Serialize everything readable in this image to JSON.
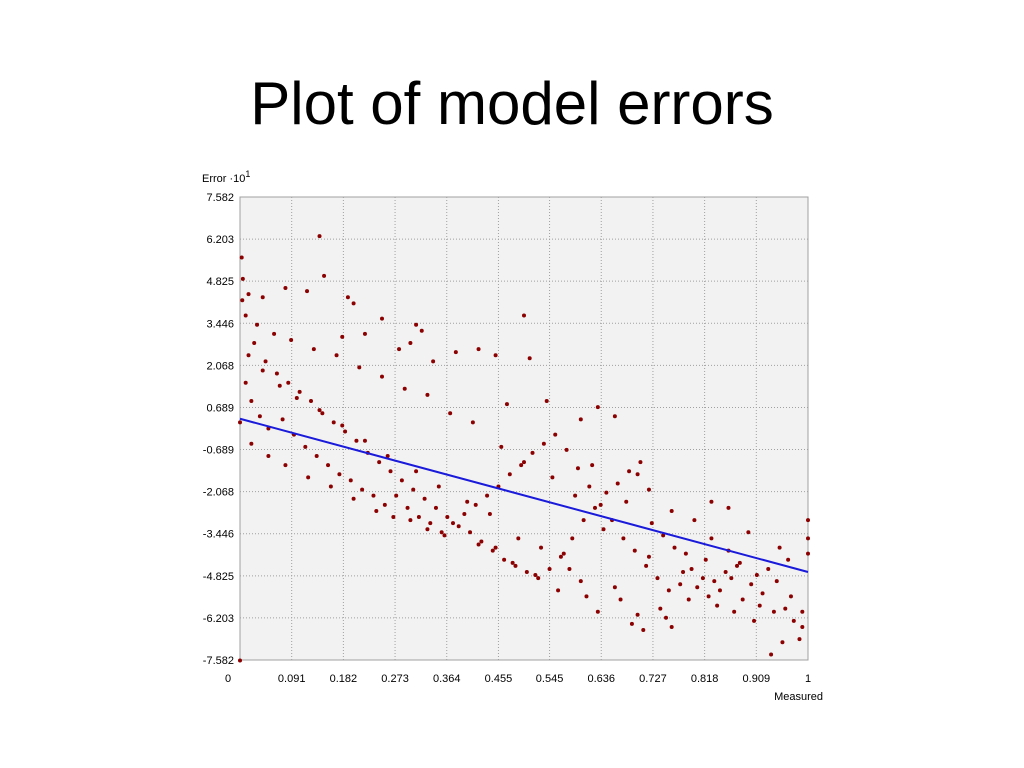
{
  "slide": {
    "title": "Plot of model errors"
  },
  "chart_data": {
    "type": "scatter",
    "title": "",
    "ylabel": "Error ·10",
    "ylabel_exponent": "1",
    "xlabel": "Measured",
    "xlim": [
      0,
      1
    ],
    "ylim": [
      -7.582,
      7.582
    ],
    "x_ticks": [
      "0",
      "0.091",
      "0.182",
      "0.273",
      "0.364",
      "0.455",
      "0.545",
      "0.636",
      "0.727",
      "0.818",
      "0.909",
      "1"
    ],
    "y_ticks": [
      "7.582",
      "6.203",
      "4.825",
      "3.446",
      "2.068",
      "0.689",
      "-0.689",
      "-2.068",
      "-3.446",
      "-4.825",
      "-6.203",
      "-7.582"
    ],
    "grid": true,
    "colors": {
      "points": "#8b0000",
      "trend": "#1a1adb",
      "plot_bg": "#f2f2f2",
      "grid": "#a0a0a0"
    },
    "series": [
      {
        "kind": "points",
        "points": [
          [
            0.003,
            5.6
          ],
          [
            0.005,
            4.9
          ],
          [
            0.004,
            4.2
          ],
          [
            0.015,
            4.4
          ],
          [
            0.04,
            4.3
          ],
          [
            0.08,
            4.6
          ],
          [
            0.118,
            4.5
          ],
          [
            0.14,
            6.3
          ],
          [
            0.148,
            5.0
          ],
          [
            0.19,
            4.3
          ],
          [
            0.2,
            4.1
          ],
          [
            0.25,
            3.6
          ],
          [
            0.31,
            3.4
          ],
          [
            0.32,
            3.2
          ],
          [
            0.5,
            3.7
          ],
          [
            0.22,
            3.1
          ],
          [
            0.18,
            3.0
          ],
          [
            0.3,
            2.8
          ],
          [
            0.38,
            2.5
          ],
          [
            0.42,
            2.6
          ],
          [
            0.45,
            2.4
          ],
          [
            0.51,
            2.3
          ],
          [
            0.28,
            2.6
          ],
          [
            0.34,
            2.2
          ],
          [
            0.63,
            0.7
          ],
          [
            0.66,
            0.4
          ],
          [
            0.6,
            0.3
          ],
          [
            0.54,
            0.9
          ],
          [
            0.47,
            0.8
          ],
          [
            0.7,
            -1.5
          ],
          [
            0.72,
            -2.0
          ],
          [
            0.62,
            -1.2
          ],
          [
            0.68,
            -2.4
          ],
          [
            0.76,
            -2.7
          ],
          [
            0.8,
            -3.0
          ],
          [
            0.83,
            -3.6
          ],
          [
            0.86,
            -4.0
          ],
          [
            0.88,
            -4.4
          ],
          [
            0.9,
            -5.1
          ],
          [
            0.93,
            -4.6
          ],
          [
            0.95,
            -3.9
          ],
          [
            0.97,
            -5.5
          ],
          [
            0.99,
            -6.0
          ],
          [
            1.0,
            -3.0
          ],
          [
            1.0,
            -3.6
          ],
          [
            1.0,
            -4.1
          ],
          [
            0.985,
            -6.9
          ],
          [
            0.935,
            -7.4
          ],
          [
            0.955,
            -7.0
          ],
          [
            0.905,
            -6.3
          ],
          [
            0.87,
            -6.0
          ],
          [
            0.84,
            -5.8
          ],
          [
            0.79,
            -5.6
          ],
          [
            0.76,
            -6.5
          ],
          [
            0.74,
            -5.9
          ],
          [
            0.7,
            -6.1
          ],
          [
            0.69,
            -6.4
          ],
          [
            0.66,
            -5.2
          ],
          [
            0.63,
            -6.0
          ],
          [
            0.6,
            -5.0
          ],
          [
            0.58,
            -4.6
          ],
          [
            0.56,
            -5.3
          ],
          [
            0.52,
            -4.8
          ],
          [
            0.48,
            -4.4
          ],
          [
            0.45,
            -3.9
          ],
          [
            0.42,
            -3.8
          ],
          [
            0.36,
            -3.5
          ],
          [
            0.33,
            -3.3
          ],
          [
            0.3,
            -3.0
          ],
          [
            0.27,
            -2.9
          ],
          [
            0.24,
            -2.7
          ],
          [
            0.2,
            -2.3
          ],
          [
            0.16,
            -1.9
          ],
          [
            0.12,
            -1.6
          ],
          [
            0.08,
            -1.2
          ],
          [
            0.05,
            -0.9
          ],
          [
            0.02,
            -0.5
          ],
          [
            0.0,
            -7.6
          ],
          [
            0.0,
            0.2
          ],
          [
            0.83,
            -2.4
          ],
          [
            0.86,
            -2.6
          ],
          [
            0.82,
            -4.3
          ],
          [
            0.78,
            -4.7
          ],
          [
            0.72,
            -4.2
          ],
          [
            0.64,
            -3.3
          ],
          [
            0.59,
            -2.2
          ],
          [
            0.55,
            -1.6
          ],
          [
            0.5,
            -1.1
          ],
          [
            0.46,
            -0.6
          ],
          [
            0.41,
            0.2
          ],
          [
            0.37,
            0.5
          ],
          [
            0.33,
            1.1
          ],
          [
            0.29,
            1.3
          ],
          [
            0.25,
            1.7
          ],
          [
            0.21,
            2.0
          ],
          [
            0.17,
            2.4
          ],
          [
            0.13,
            2.6
          ],
          [
            0.09,
            2.9
          ],
          [
            0.06,
            3.1
          ],
          [
            0.03,
            3.4
          ],
          [
            0.01,
            3.7
          ],
          [
            0.025,
            2.8
          ],
          [
            0.045,
            2.2
          ],
          [
            0.065,
            1.8
          ],
          [
            0.085,
            1.5
          ],
          [
            0.105,
            1.2
          ],
          [
            0.125,
            0.9
          ],
          [
            0.145,
            0.5
          ],
          [
            0.165,
            0.2
          ],
          [
            0.185,
            -0.1
          ],
          [
            0.205,
            -0.4
          ],
          [
            0.225,
            -0.8
          ],
          [
            0.245,
            -1.1
          ],
          [
            0.265,
            -1.4
          ],
          [
            0.285,
            -1.7
          ],
          [
            0.305,
            -2.0
          ],
          [
            0.325,
            -2.3
          ],
          [
            0.345,
            -2.6
          ],
          [
            0.365,
            -2.9
          ],
          [
            0.385,
            -3.2
          ],
          [
            0.405,
            -3.4
          ],
          [
            0.425,
            -3.7
          ],
          [
            0.445,
            -4.0
          ],
          [
            0.465,
            -4.3
          ],
          [
            0.485,
            -4.5
          ],
          [
            0.505,
            -4.7
          ],
          [
            0.525,
            -4.9
          ],
          [
            0.545,
            -4.6
          ],
          [
            0.565,
            -4.2
          ],
          [
            0.585,
            -3.6
          ],
          [
            0.605,
            -3.0
          ],
          [
            0.625,
            -2.6
          ],
          [
            0.645,
            -2.1
          ],
          [
            0.665,
            -1.8
          ],
          [
            0.685,
            -1.4
          ],
          [
            0.705,
            -1.1
          ],
          [
            0.725,
            -3.1
          ],
          [
            0.745,
            -3.5
          ],
          [
            0.765,
            -3.9
          ],
          [
            0.785,
            -4.1
          ],
          [
            0.805,
            -5.2
          ],
          [
            0.825,
            -5.5
          ],
          [
            0.845,
            -5.3
          ],
          [
            0.865,
            -4.9
          ],
          [
            0.885,
            -5.6
          ],
          [
            0.895,
            -3.4
          ],
          [
            0.915,
            -5.8
          ],
          [
            0.945,
            -5.0
          ],
          [
            0.965,
            -4.3
          ],
          [
            0.975,
            -6.3
          ],
          [
            0.99,
            -6.5
          ],
          [
            0.75,
            -6.2
          ],
          [
            0.71,
            -6.6
          ],
          [
            0.67,
            -5.6
          ],
          [
            0.61,
            -5.5
          ],
          [
            0.57,
            -4.1
          ],
          [
            0.53,
            -3.9
          ],
          [
            0.49,
            -3.6
          ],
          [
            0.44,
            -2.8
          ],
          [
            0.4,
            -2.4
          ],
          [
            0.35,
            -1.9
          ],
          [
            0.31,
            -1.4
          ],
          [
            0.26,
            -0.9
          ],
          [
            0.22,
            -0.4
          ],
          [
            0.18,
            0.1
          ],
          [
            0.14,
            0.6
          ],
          [
            0.1,
            1.0
          ],
          [
            0.07,
            1.4
          ],
          [
            0.04,
            1.9
          ],
          [
            0.015,
            2.4
          ],
          [
            0.01,
            1.5
          ],
          [
            0.02,
            0.9
          ],
          [
            0.035,
            0.4
          ],
          [
            0.05,
            0.0
          ],
          [
            0.075,
            0.3
          ],
          [
            0.095,
            -0.2
          ],
          [
            0.115,
            -0.6
          ],
          [
            0.135,
            -0.9
          ],
          [
            0.155,
            -1.2
          ],
          [
            0.175,
            -1.5
          ],
          [
            0.195,
            -1.7
          ],
          [
            0.215,
            -2.0
          ],
          [
            0.235,
            -2.2
          ],
          [
            0.255,
            -2.5
          ],
          [
            0.275,
            -2.2
          ],
          [
            0.295,
            -2.6
          ],
          [
            0.315,
            -2.9
          ],
          [
            0.335,
            -3.1
          ],
          [
            0.355,
            -3.4
          ],
          [
            0.375,
            -3.1
          ],
          [
            0.395,
            -2.8
          ],
          [
            0.415,
            -2.5
          ],
          [
            0.435,
            -2.2
          ],
          [
            0.455,
            -1.9
          ],
          [
            0.475,
            -1.5
          ],
          [
            0.495,
            -1.2
          ],
          [
            0.515,
            -0.8
          ],
          [
            0.535,
            -0.5
          ],
          [
            0.555,
            -0.2
          ],
          [
            0.575,
            -0.7
          ],
          [
            0.595,
            -1.3
          ],
          [
            0.615,
            -1.9
          ],
          [
            0.635,
            -2.5
          ],
          [
            0.655,
            -3.0
          ],
          [
            0.675,
            -3.6
          ],
          [
            0.695,
            -4.0
          ],
          [
            0.715,
            -4.5
          ],
          [
            0.735,
            -4.9
          ],
          [
            0.755,
            -5.3
          ],
          [
            0.775,
            -5.1
          ],
          [
            0.795,
            -4.6
          ],
          [
            0.815,
            -4.9
          ],
          [
            0.835,
            -5.0
          ],
          [
            0.855,
            -4.7
          ],
          [
            0.875,
            -4.5
          ],
          [
            0.91,
            -4.8
          ],
          [
            0.92,
            -5.4
          ],
          [
            0.94,
            -6.0
          ],
          [
            0.96,
            -5.9
          ]
        ]
      },
      {
        "kind": "line",
        "points": [
          [
            0,
            0.32
          ],
          [
            1,
            -4.7
          ]
        ]
      }
    ]
  }
}
